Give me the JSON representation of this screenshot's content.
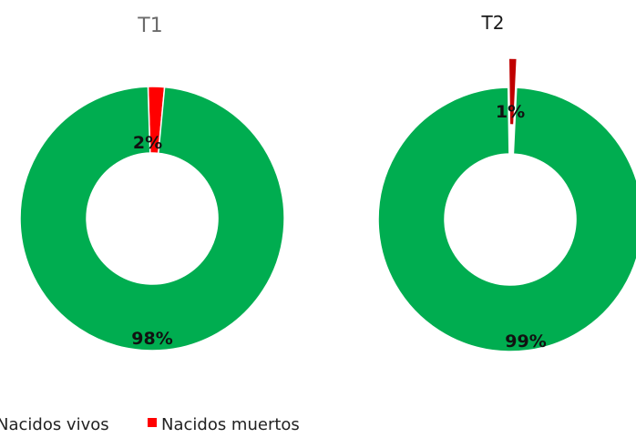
{
  "chart_data": [
    {
      "type": "donut",
      "title": "T1",
      "categories": [
        "Nacidos vivos",
        "Nacidos muertos"
      ],
      "values": [
        98,
        2
      ],
      "data_labels": [
        "98%",
        "2%"
      ],
      "colors": [
        "#00ad50",
        "#ff0000"
      ],
      "exploded": [
        false,
        false
      ]
    },
    {
      "type": "donut",
      "title": "T2",
      "categories": [
        "Nacidos vivos",
        "Nacidos muertos"
      ],
      "values": [
        99,
        1
      ],
      "data_labels": [
        "99%",
        "1%"
      ],
      "colors": [
        "#00ad50",
        "#c00000"
      ],
      "exploded": [
        false,
        true
      ]
    }
  ],
  "legend": {
    "position": "bottom",
    "items": [
      {
        "label": "Nacidos vivos",
        "color": "#00ad50"
      },
      {
        "label": "Nacidos muertos",
        "color": "#ff0000"
      }
    ]
  }
}
